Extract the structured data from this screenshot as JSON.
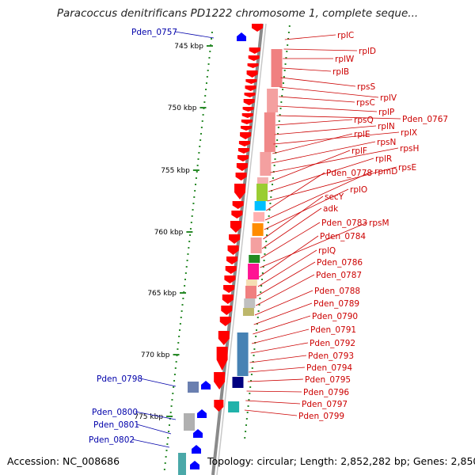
{
  "title": "Paracoccus denitrificans PD1222 chromosome 1, complete seque...",
  "footer": {
    "accession": "Accession: NC_008686",
    "summary": "Topology: circular; Length: 2,852,282 bp; Genes: 2,850"
  },
  "colors": {
    "red_label": "#cc0000",
    "blue_label": "#0000aa",
    "backbone": "#8a8a8a",
    "tick": "#2a8a2a",
    "gene_red": "#ff0000",
    "gene_blue": "#0000ff"
  },
  "scale_labels": [
    "745 kbp",
    "750 kbp",
    "755 kbp",
    "760 kbp",
    "765 kbp",
    "770 kbp",
    "775 kbp"
  ],
  "right_labels": [
    "rplC",
    "rplD",
    "rplW",
    "rplB",
    "rpsS",
    "rplV",
    "rpsC",
    "rplP",
    "Pden_0767",
    "rpsQ",
    "rplN",
    "rplX",
    "rplE",
    "rpsN",
    "rpsH",
    "rplF",
    "rplR",
    "rpsE",
    "Pden_0778",
    "rpmD",
    "rplO",
    "secY",
    "adk",
    "Pden_0783",
    "rpsM",
    "Pden_0784",
    "rplQ",
    "Pden_0786",
    "Pden_0787",
    "Pden_0788",
    "Pden_0789",
    "Pden_0790",
    "Pden_0791",
    "Pden_0792",
    "Pden_0793",
    "Pden_0794",
    "Pden_0795",
    "Pden_0796",
    "Pden_0797",
    "Pden_0799"
  ],
  "left_labels": [
    "Pden_0757",
    "Pden_0798",
    "Pden_0800",
    "Pden_0801",
    "Pden_0802"
  ]
}
